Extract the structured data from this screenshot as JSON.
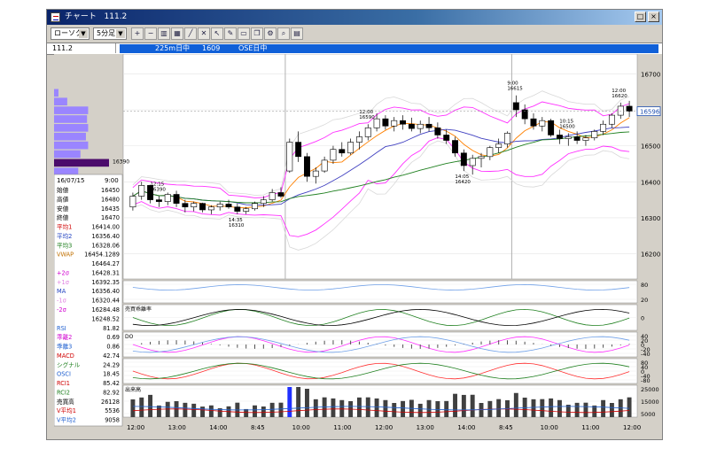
{
  "window": {
    "title_prefix": "チャート",
    "title_symbol": "111.2",
    "buttons": {
      "restore": "□",
      "close": "×"
    }
  },
  "toolbar": {
    "chart_type": "ローソク",
    "timeframe": "5分足",
    "dropdown_glyph": "▼",
    "tool_icons": [
      "zoom-in-icon",
      "zoom-out-icon",
      "bar-chart-icon",
      "table-icon",
      "trend-line-icon",
      "cross-icon",
      "arrow-icon",
      "pen-icon",
      "ruler-icon",
      "copy-icon",
      "gear-icon",
      "magnify-icon",
      "print-icon"
    ]
  },
  "infobar": {
    "symbol": "111.2",
    "market": "225m日中",
    "code": "1609",
    "session": "OSE日中"
  },
  "colors": {
    "frame_bg": "#d4d0c8",
    "plot_bg": "#ffffff",
    "up_candle": "#ffffff",
    "down_candle": "#000000",
    "bollinger_outer": "#d8d8d8",
    "bollinger_inner": "#ff30ff",
    "ma1": "#ff8000",
    "ma2": "#4040c0",
    "ma3": "#208020",
    "volume_profile": "#9a85ff",
    "volume_profile_hl": "#4b0b6b",
    "price_tag": "#1f4fb0",
    "rsi": "#6fa0e8",
    "macd": "#ff3030",
    "signal": "#208020",
    "volume": "#404040"
  },
  "chart_data": {
    "type": "candlestick",
    "price_axis": {
      "ticks": [
        16700,
        16600,
        16500,
        16400,
        16300,
        16200
      ],
      "range": [
        16130,
        16755
      ]
    },
    "time_labels": [
      "12:00",
      "13:00",
      "14:00",
      "8:45",
      "10:00",
      "11:00",
      "12:00",
      "13:00",
      "14:00",
      "8:45",
      "10:00",
      "11:00",
      "12:00"
    ],
    "current_price": "16596",
    "profile_label": "16390",
    "candles": [
      [
        16330,
        16370,
        16320,
        16360
      ],
      [
        16360,
        16400,
        16350,
        16390
      ],
      [
        16390,
        16392,
        16340,
        16350
      ],
      [
        16350,
        16360,
        16330,
        16345
      ],
      [
        16345,
        16370,
        16335,
        16365
      ],
      [
        16365,
        16375,
        16330,
        16340
      ],
      [
        16340,
        16350,
        16315,
        16330
      ],
      [
        16330,
        16345,
        16318,
        16340
      ],
      [
        16340,
        16342,
        16315,
        16322
      ],
      [
        16322,
        16335,
        16310,
        16330
      ],
      [
        16330,
        16345,
        16320,
        16338
      ],
      [
        16338,
        16350,
        16325,
        16330
      ],
      [
        16330,
        16340,
        16310,
        16318
      ],
      [
        16318,
        16330,
        16310,
        16325
      ],
      [
        16325,
        16345,
        16320,
        16340
      ],
      [
        16340,
        16360,
        16330,
        16350
      ],
      [
        16350,
        16380,
        16345,
        16370
      ],
      [
        16370,
        16385,
        16355,
        16360
      ],
      [
        16430,
        16520,
        16425,
        16510
      ],
      [
        16510,
        16540,
        16455,
        16470
      ],
      [
        16470,
        16480,
        16400,
        16415
      ],
      [
        16415,
        16440,
        16395,
        16430
      ],
      [
        16430,
        16470,
        16425,
        16460
      ],
      [
        16460,
        16500,
        16450,
        16490
      ],
      [
        16490,
        16510,
        16470,
        16480
      ],
      [
        16480,
        16520,
        16475,
        16510
      ],
      [
        16510,
        16540,
        16490,
        16525
      ],
      [
        16525,
        16560,
        16515,
        16550
      ],
      [
        16550,
        16590,
        16540,
        16575
      ],
      [
        16575,
        16585,
        16545,
        16555
      ],
      [
        16555,
        16580,
        16540,
        16570
      ],
      [
        16570,
        16585,
        16545,
        16560
      ],
      [
        16560,
        16578,
        16540,
        16548
      ],
      [
        16548,
        16570,
        16535,
        16560
      ],
      [
        16560,
        16580,
        16540,
        16550
      ],
      [
        16550,
        16565,
        16520,
        16530
      ],
      [
        16530,
        16545,
        16505,
        16515
      ],
      [
        16515,
        16525,
        16470,
        16480
      ],
      [
        16480,
        16490,
        16430,
        16445
      ],
      [
        16445,
        16475,
        16420,
        16465
      ],
      [
        16465,
        16480,
        16440,
        16470
      ],
      [
        16470,
        16500,
        16460,
        16495
      ],
      [
        16495,
        16520,
        16480,
        16505
      ],
      [
        16505,
        16540,
        16495,
        16535
      ],
      [
        16620,
        16640,
        16580,
        16600
      ],
      [
        16600,
        16615,
        16560,
        16575
      ],
      [
        16575,
        16590,
        16545,
        16555
      ],
      [
        16555,
        16580,
        16540,
        16570
      ],
      [
        16570,
        16575,
        16525,
        16530
      ],
      [
        16530,
        16545,
        16505,
        16520
      ],
      [
        16520,
        16535,
        16500,
        16525
      ],
      [
        16525,
        16540,
        16505,
        16515
      ],
      [
        16515,
        16530,
        16500,
        16522
      ],
      [
        16522,
        16545,
        16515,
        16540
      ],
      [
        16540,
        16570,
        16530,
        16560
      ],
      [
        16560,
        16590,
        16550,
        16585
      ],
      [
        16585,
        16620,
        16575,
        16610
      ],
      [
        16610,
        16625,
        16580,
        16596
      ]
    ],
    "annotations": [
      {
        "label": "12:15",
        "value": "16390"
      },
      {
        "label": "14:35",
        "value": "16310"
      },
      {
        "label": "12:00",
        "value": "16590"
      },
      {
        "label": "14:05",
        "value": "16420"
      },
      {
        "label": "9:00",
        "value": "16615"
      },
      {
        "label": "10:15",
        "value": "16500"
      },
      {
        "label": "12:00",
        "value": "16620"
      }
    ],
    "volume_profile": [
      0.08,
      0.24,
      0.62,
      0.6,
      0.62,
      0.58,
      0.62,
      0.48,
      1.0,
      0.44,
      0.3,
      0.38,
      0.34
    ],
    "panels": [
      {
        "name": "rsi",
        "label": "",
        "ticks": [
          "80",
          "20"
        ]
      },
      {
        "name": "trend",
        "label": "売買乖離率",
        "ticks": [
          "0"
        ]
      },
      {
        "name": "momentum",
        "label": "DO",
        "ticks": [
          "40",
          "20",
          "0",
          "-20",
          "-40"
        ]
      },
      {
        "name": "macd",
        "label": "",
        "ticks": [
          "80",
          "40",
          "0",
          "-40",
          "-80"
        ]
      },
      {
        "name": "volume",
        "label": "出来高",
        "ticks": [
          "25000",
          "15000",
          "5000"
        ]
      }
    ]
  },
  "data_window": {
    "date": "16/07/15",
    "time": "9:00",
    "rows": [
      {
        "label": "始値",
        "value": "16450",
        "color": "#000000"
      },
      {
        "label": "高値",
        "value": "16480",
        "color": "#000000"
      },
      {
        "label": "安値",
        "value": "16435",
        "color": "#000000"
      },
      {
        "label": "終値",
        "value": "16470",
        "color": "#000000"
      },
      {
        "label": "平均1",
        "value": "16414.00",
        "color": "#d00000"
      },
      {
        "label": "平均2",
        "value": "16356.40",
        "color": "#2040c0"
      },
      {
        "label": "平均3",
        "value": "16328.06",
        "color": "#208020"
      },
      {
        "label": "VWAP",
        "value": "16454.1289",
        "color": "#c07000"
      },
      {
        "label": "",
        "value": "16464.27",
        "color": "#000000"
      },
      {
        "label": "+2σ",
        "value": "16428.31",
        "color": "#d000d0"
      },
      {
        "label": "+1σ",
        "value": "16392.35",
        "color": "#e080e0"
      },
      {
        "label": "MA",
        "value": "16356.40",
        "color": "#2040c0"
      },
      {
        "label": "-1σ",
        "value": "16320.44",
        "color": "#e080e0"
      },
      {
        "label": "-2σ",
        "value": "16284.48",
        "color": "#d000d0"
      },
      {
        "label": "",
        "value": "16248.52",
        "color": "#000000"
      },
      {
        "label": "RSI",
        "value": "81.82",
        "color": "#2060d0"
      },
      {
        "label": "乖離2",
        "value": "0.69",
        "color": "#d000d0"
      },
      {
        "label": "乖離3",
        "value": "0.86",
        "color": "#2060d0"
      },
      {
        "label": "MACD",
        "value": "42.74",
        "color": "#d00000"
      },
      {
        "label": "シグナル",
        "value": "24.29",
        "color": "#208020"
      },
      {
        "label": "OSCI",
        "value": "18.45",
        "color": "#2060d0"
      },
      {
        "label": "RCI1",
        "value": "85.42",
        "color": "#d00000"
      },
      {
        "label": "RCI2",
        "value": "82.92",
        "color": "#208020"
      },
      {
        "label": "売買高",
        "value": "26128",
        "color": "#000000"
      },
      {
        "label": "V平均1",
        "value": "5536",
        "color": "#d00000"
      },
      {
        "label": "V平均2",
        "value": "9058",
        "color": "#2060d0"
      }
    ]
  }
}
